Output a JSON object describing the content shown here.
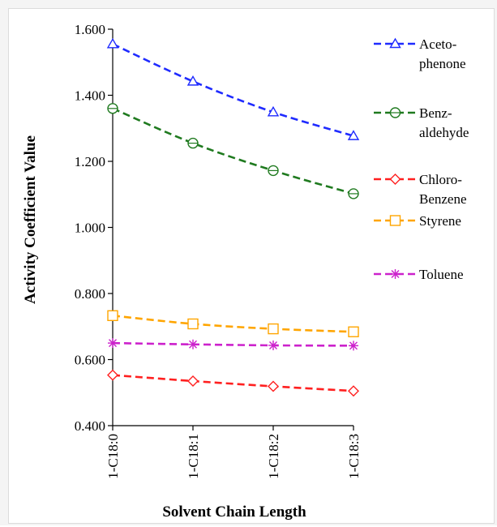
{
  "chart_data": {
    "type": "line",
    "title": "",
    "xlabel": "Solvent Chain Length",
    "ylabel": "Activity Coefficient Value",
    "categories": [
      "1-C18:0",
      "1-C18:1",
      "1-C18:2",
      "1-C18:3"
    ],
    "ylim": [
      0.4,
      1.6
    ],
    "yticks": [
      "0.400",
      "0.600",
      "0.800",
      "1.000",
      "1.200",
      "1.400",
      "1.600"
    ],
    "yticks_values": [
      0.4,
      0.6,
      0.8,
      1.0,
      1.2,
      1.4,
      1.6
    ],
    "grid": false,
    "legend_position": "right",
    "series": [
      {
        "name": "Aceto-\nphenone",
        "values": [
          1.555,
          1.442,
          1.349,
          1.277
        ],
        "color": "#1f2bff",
        "marker": "triangle"
      },
      {
        "name": "Benz-\naldehyde",
        "values": [
          1.36,
          1.255,
          1.172,
          1.102
        ],
        "color": "#1f7a1f",
        "marker": "circle"
      },
      {
        "name": "Chloro-\nBenzene",
        "values": [
          0.553,
          0.535,
          0.519,
          0.505
        ],
        "color": "#ff2020",
        "marker": "diamond"
      },
      {
        "name": "Styrene",
        "values": [
          0.733,
          0.708,
          0.693,
          0.684
        ],
        "color": "#ffa500",
        "marker": "square"
      },
      {
        "name": "Toluene",
        "values": [
          0.65,
          0.646,
          0.643,
          0.642
        ],
        "color": "#cc22cc",
        "marker": "star"
      }
    ]
  }
}
